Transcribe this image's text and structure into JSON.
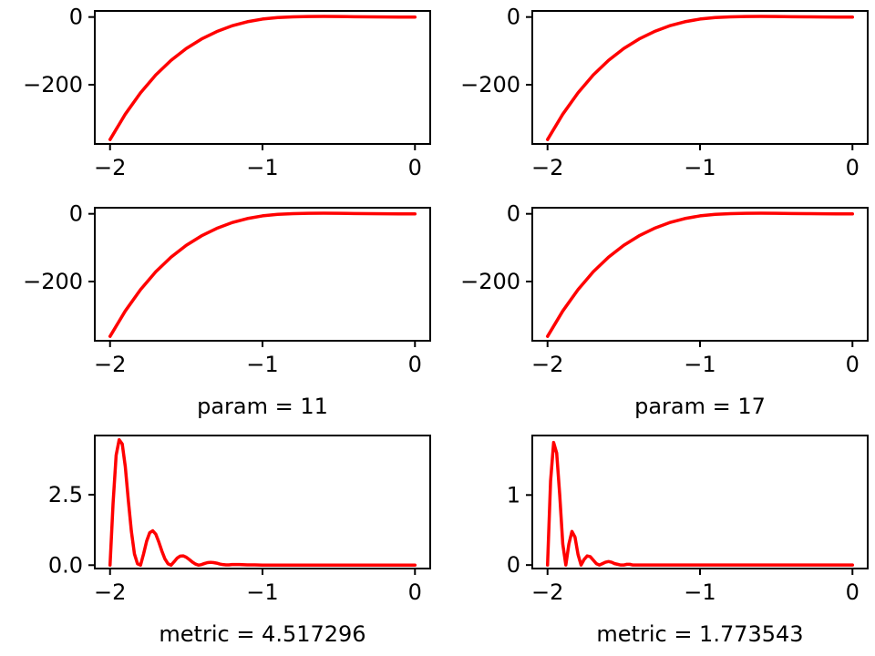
{
  "chart_data": [
    {
      "type": "line",
      "xlabel": "",
      "ylabel": "",
      "xlim": [
        -2.1,
        0.1
      ],
      "ylim": [
        -375,
        18
      ],
      "xticks": [
        -2,
        -1,
        0
      ],
      "xtick_labels": [
        "−2",
        "−1",
        "0"
      ],
      "yticks": [
        -200,
        0
      ],
      "ytick_labels": [
        "−200",
        "0"
      ],
      "series": [
        {
          "color": "#ff0000",
          "x": [
            -2.0,
            -1.9,
            -1.8,
            -1.7,
            -1.6,
            -1.5,
            -1.4,
            -1.3,
            -1.2,
            -1.1,
            -1.0,
            -0.9,
            -0.8,
            -0.7,
            -0.6,
            -0.5,
            -0.4,
            -0.3,
            -0.2,
            -0.1,
            0.0
          ],
          "y": [
            -362,
            -287,
            -224,
            -171,
            -128,
            -93,
            -65,
            -43,
            -26,
            -14,
            -6,
            -1.5,
            0.5,
            1.5,
            1.8,
            1.6,
            1.0,
            0.5,
            0.2,
            0.0,
            0.0
          ]
        }
      ]
    },
    {
      "type": "line",
      "xlabel": "",
      "ylabel": "",
      "xlim": [
        -2.1,
        0.1
      ],
      "ylim": [
        -375,
        18
      ],
      "xticks": [
        -2,
        -1,
        0
      ],
      "xtick_labels": [
        "−2",
        "−1",
        "0"
      ],
      "yticks": [
        -200,
        0
      ],
      "ytick_labels": [
        "−200",
        "0"
      ],
      "series": [
        {
          "color": "#ff0000",
          "x": [
            -2.0,
            -1.9,
            -1.8,
            -1.7,
            -1.6,
            -1.5,
            -1.4,
            -1.3,
            -1.2,
            -1.1,
            -1.0,
            -0.9,
            -0.8,
            -0.7,
            -0.6,
            -0.5,
            -0.4,
            -0.3,
            -0.2,
            -0.1,
            0.0
          ],
          "y": [
            -362,
            -287,
            -224,
            -171,
            -128,
            -93,
            -65,
            -43,
            -26,
            -14,
            -6,
            -1.5,
            0.5,
            1.5,
            1.8,
            1.6,
            1.0,
            0.5,
            0.2,
            0.0,
            0.0
          ]
        }
      ]
    },
    {
      "type": "line",
      "xlabel": "param = 11",
      "ylabel": "",
      "xlim": [
        -2.1,
        0.1
      ],
      "ylim": [
        -375,
        18
      ],
      "xticks": [
        -2,
        -1,
        0
      ],
      "xtick_labels": [
        "−2",
        "−1",
        "0"
      ],
      "yticks": [
        -200,
        0
      ],
      "ytick_labels": [
        "−200",
        "0"
      ],
      "series": [
        {
          "color": "#ff0000",
          "x": [
            -2.0,
            -1.9,
            -1.8,
            -1.7,
            -1.6,
            -1.5,
            -1.4,
            -1.3,
            -1.2,
            -1.1,
            -1.0,
            -0.9,
            -0.8,
            -0.7,
            -0.6,
            -0.5,
            -0.4,
            -0.3,
            -0.2,
            -0.1,
            0.0
          ],
          "y": [
            -362,
            -287,
            -224,
            -171,
            -128,
            -93,
            -65,
            -43,
            -26,
            -14,
            -6,
            -1.5,
            0.5,
            1.5,
            1.8,
            1.6,
            1.0,
            0.5,
            0.2,
            0.0,
            0.0
          ]
        }
      ]
    },
    {
      "type": "line",
      "xlabel": "param = 17",
      "ylabel": "",
      "xlim": [
        -2.1,
        0.1
      ],
      "ylim": [
        -375,
        18
      ],
      "xticks": [
        -2,
        -1,
        0
      ],
      "xtick_labels": [
        "−2",
        "−1",
        "0"
      ],
      "yticks": [
        -200,
        0
      ],
      "ytick_labels": [
        "−200",
        "0"
      ],
      "series": [
        {
          "color": "#ff0000",
          "x": [
            -2.0,
            -1.9,
            -1.8,
            -1.7,
            -1.6,
            -1.5,
            -1.4,
            -1.3,
            -1.2,
            -1.1,
            -1.0,
            -0.9,
            -0.8,
            -0.7,
            -0.6,
            -0.5,
            -0.4,
            -0.3,
            -0.2,
            -0.1,
            0.0
          ],
          "y": [
            -362,
            -287,
            -224,
            -171,
            -128,
            -93,
            -65,
            -43,
            -26,
            -14,
            -6,
            -1.5,
            0.5,
            1.5,
            1.8,
            1.6,
            1.0,
            0.5,
            0.2,
            0.0,
            0.0
          ]
        }
      ]
    },
    {
      "type": "line",
      "xlabel": "metric = 4.517296",
      "ylabel": "",
      "xlim": [
        -2.1,
        0.1
      ],
      "ylim": [
        -0.12,
        4.6
      ],
      "xticks": [
        -2,
        -1,
        0
      ],
      "xtick_labels": [
        "−2",
        "−1",
        "0"
      ],
      "yticks": [
        0.0,
        2.5
      ],
      "ytick_labels": [
        "0.0",
        "2.5"
      ],
      "series": [
        {
          "color": "#ff0000",
          "x": [
            -2.0,
            -1.98,
            -1.96,
            -1.94,
            -1.92,
            -1.9,
            -1.88,
            -1.86,
            -1.84,
            -1.82,
            -1.8,
            -1.78,
            -1.76,
            -1.74,
            -1.72,
            -1.7,
            -1.68,
            -1.66,
            -1.64,
            -1.62,
            -1.6,
            -1.58,
            -1.56,
            -1.54,
            -1.52,
            -1.5,
            -1.48,
            -1.46,
            -1.44,
            -1.42,
            -1.4,
            -1.38,
            -1.36,
            -1.34,
            -1.32,
            -1.3,
            -1.28,
            -1.26,
            -1.24,
            -1.22,
            -1.2,
            -1.15,
            -1.1,
            -1.05,
            -1.0,
            -0.9,
            -0.8,
            -0.6,
            -0.4,
            -0.2,
            0.0
          ],
          "y": [
            0.0,
            2.2,
            3.9,
            4.45,
            4.3,
            3.5,
            2.3,
            1.2,
            0.4,
            0.05,
            0.0,
            0.4,
            0.85,
            1.15,
            1.22,
            1.1,
            0.82,
            0.5,
            0.22,
            0.05,
            0.0,
            0.12,
            0.25,
            0.32,
            0.33,
            0.28,
            0.2,
            0.11,
            0.04,
            0.0,
            0.02,
            0.06,
            0.09,
            0.1,
            0.09,
            0.07,
            0.04,
            0.02,
            0.01,
            0.01,
            0.02,
            0.02,
            0.01,
            0.01,
            0.0,
            0.0,
            0.0,
            0.0,
            0.0,
            0.0,
            0.0
          ]
        }
      ]
    },
    {
      "type": "line",
      "xlabel": "metric = 1.773543",
      "ylabel": "",
      "xlim": [
        -2.1,
        0.1
      ],
      "ylim": [
        -0.05,
        1.85
      ],
      "xticks": [
        -2,
        -1,
        0
      ],
      "xtick_labels": [
        "−2",
        "−1",
        "0"
      ],
      "yticks": [
        0,
        1
      ],
      "ytick_labels": [
        "0",
        "1"
      ],
      "series": [
        {
          "color": "#ff0000",
          "x": [
            -2.0,
            -1.98,
            -1.96,
            -1.94,
            -1.92,
            -1.9,
            -1.88,
            -1.86,
            -1.84,
            -1.82,
            -1.8,
            -1.78,
            -1.76,
            -1.74,
            -1.72,
            -1.7,
            -1.68,
            -1.66,
            -1.64,
            -1.62,
            -1.6,
            -1.58,
            -1.56,
            -1.54,
            -1.52,
            -1.5,
            -1.48,
            -1.46,
            -1.44,
            -1.42,
            -1.4,
            -1.35,
            -1.3,
            -1.2,
            -1.0,
            -0.8,
            -0.6,
            -0.4,
            -0.2,
            0.0
          ],
          "y": [
            0.0,
            1.2,
            1.75,
            1.6,
            1.0,
            0.3,
            0.0,
            0.3,
            0.48,
            0.4,
            0.15,
            0.0,
            0.08,
            0.13,
            0.12,
            0.07,
            0.02,
            0.0,
            0.02,
            0.04,
            0.05,
            0.04,
            0.02,
            0.01,
            0.0,
            0.0,
            0.01,
            0.01,
            0.0,
            0.0,
            0.0,
            0.0,
            0.0,
            0.0,
            0.0,
            0.0,
            0.0,
            0.0,
            0.0,
            0.0
          ]
        }
      ]
    }
  ]
}
